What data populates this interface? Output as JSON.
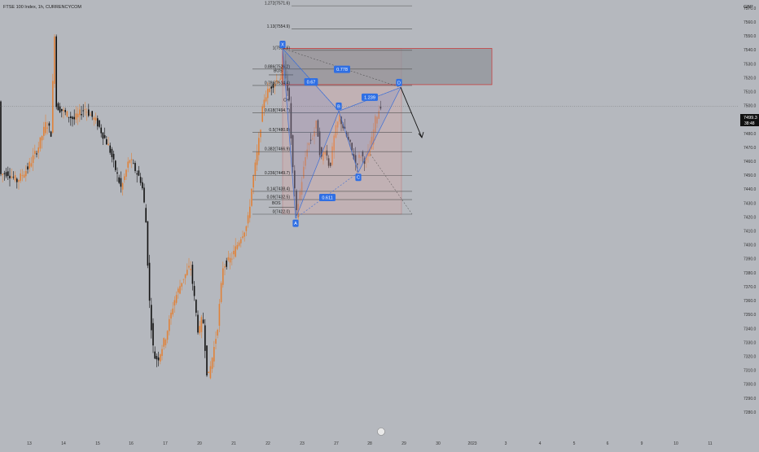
{
  "header": {
    "symbol": "FTSE 100 Index, 1h, CURRENCYCOM"
  },
  "currency_label": "GBP",
  "last_price": {
    "value": "7499.3",
    "countdown": "38:48"
  },
  "colors": {
    "background": "#b5b8be",
    "up_candle": "#e0823a",
    "down_candle": "#111111",
    "fib_line": "#555555",
    "zone_pink": "#d8a4a4",
    "zone_grey": "#8f9297",
    "pattern_line": "#3d6fd6",
    "label_blue": "#2f6fe4"
  },
  "chart_data": {
    "type": "candlestick",
    "ylim": [
      7270,
      7575
    ],
    "y_ticks": [
      "7570.0",
      "7560.0",
      "7550.0",
      "7540.0",
      "7530.0",
      "7520.0",
      "7510.0",
      "7500.0",
      "7490.0",
      "7480.0",
      "7470.0",
      "7460.0",
      "7450.0",
      "7440.0",
      "7430.0",
      "7420.0",
      "7410.0",
      "7400.0",
      "7390.0",
      "7380.0",
      "7370.0",
      "7360.0",
      "7350.0",
      "7340.0",
      "7330.0",
      "7320.0",
      "7310.0",
      "7300.0",
      "7290.0",
      "7280.0"
    ],
    "x_ticks": [
      "13",
      "14",
      "15",
      "16",
      "17",
      "20",
      "21",
      "22",
      "23",
      "27",
      "28",
      "29",
      "30",
      "2023",
      "3",
      "4",
      "5",
      "6",
      "9",
      "10",
      "11"
    ],
    "fib_levels": [
      {
        "label": "1.272(7571.6)",
        "price": 7571.6
      },
      {
        "label": "1.13(7554.9)",
        "price": 7554.9
      },
      {
        "label": "1(7539.6)",
        "price": 7539.6
      },
      {
        "label": "0.886(7526.2)",
        "price": 7526.2
      },
      {
        "label": "0.786(7514.4)",
        "price": 7514.4
      },
      {
        "label": "0.618(7494.7)",
        "price": 7494.7
      },
      {
        "label": "0.5(7480.8)",
        "price": 7480.8
      },
      {
        "label": "0.382(7466.9)",
        "price": 7466.9
      },
      {
        "label": "0.236(7449.7)",
        "price": 7449.7
      },
      {
        "label": "0.14(7438.4)",
        "price": 7438.4
      },
      {
        "label": "0.09(7432.5)",
        "price": 7432.5
      },
      {
        "label": "0(7422.0)",
        "price": 7422.0
      }
    ],
    "pattern_points": [
      {
        "label": "X",
        "price": 7541
      },
      {
        "label": "A",
        "price": 7419
      },
      {
        "label": "B",
        "price": 7496
      },
      {
        "label": "C",
        "price": 7452
      },
      {
        "label": "D",
        "price": 7513
      }
    ],
    "ratios": [
      "0.67",
      "0.778",
      "1.239",
      "0.611"
    ],
    "annotations": [
      "BOS",
      "CH",
      "BOS"
    ],
    "zones": [
      {
        "name": "pink",
        "top": 7541,
        "bottom": 7422
      },
      {
        "name": "grey",
        "top": 7541,
        "bottom": 7515
      }
    ]
  }
}
